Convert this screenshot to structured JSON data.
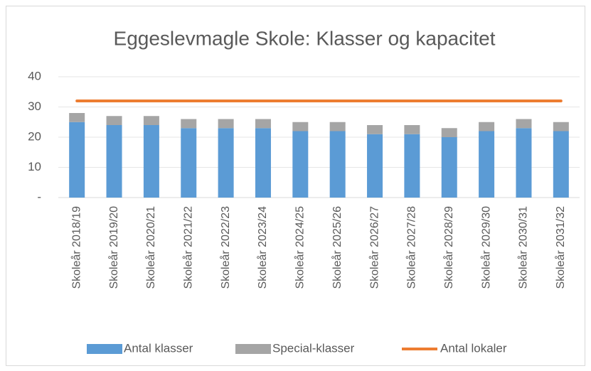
{
  "chart_data": {
    "type": "bar",
    "stacked": true,
    "title": "Eggeslevmagle Skole: Klasser og kapacitet",
    "categories": [
      "Skoleår 2018/19",
      "Skoleår 2019/20",
      "Skoleår 2020/21",
      "Skoleår 2021/22",
      "Skoleår 2022/23",
      "Skoleår 2023/24",
      "Skoleår 2024/25",
      "Skoleår 2025/26",
      "Skoleår 2026/27",
      "Skoleår 2027/28",
      "Skoleår 2028/29",
      "Skoleår 2029/30",
      "Skoleår 2030/31",
      "Skoleår 2031/32"
    ],
    "series": [
      {
        "name": "Antal klasser",
        "type": "bar",
        "color": "#5b9bd5",
        "values": [
          25,
          24,
          24,
          23,
          23,
          23,
          22,
          22,
          21,
          21,
          20,
          22,
          23,
          22
        ]
      },
      {
        "name": "Special-klasser",
        "type": "bar",
        "color": "#a5a5a5",
        "values": [
          3,
          3,
          3,
          3,
          3,
          3,
          3,
          3,
          3,
          3,
          3,
          3,
          3,
          3
        ]
      },
      {
        "name": "Antal lokaler",
        "type": "line",
        "color": "#ed7d31",
        "values": [
          32,
          32,
          32,
          32,
          32,
          32,
          32,
          32,
          32,
          32,
          32,
          32,
          32,
          32
        ]
      }
    ],
    "ylim": [
      0,
      40
    ],
    "yticks": [
      {
        "value": 0,
        "label": "-"
      },
      10,
      20,
      30,
      40
    ],
    "grid": true,
    "legend": "bottom"
  }
}
